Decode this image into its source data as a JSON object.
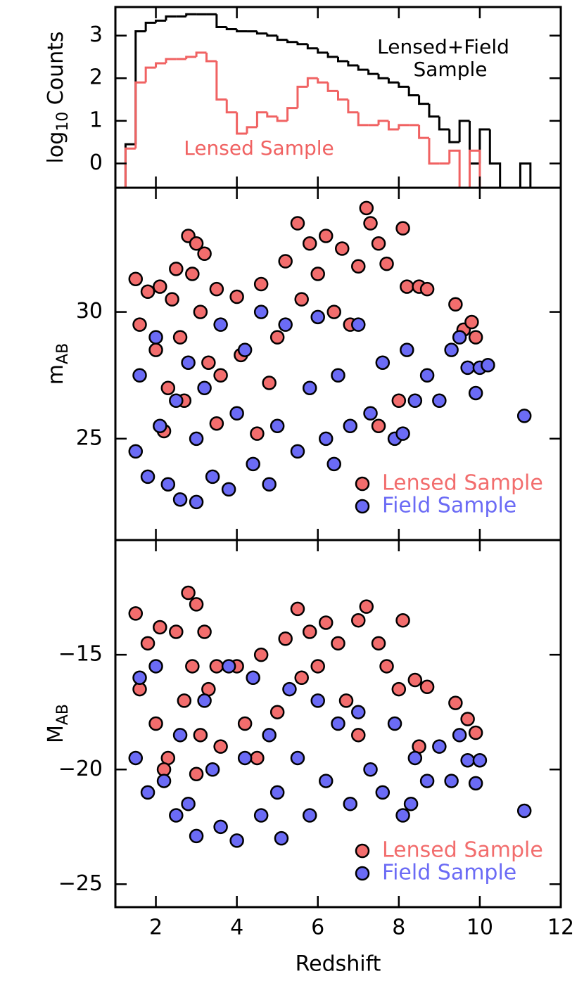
{
  "chart_data": [
    {
      "type": "histogram",
      "ylabel": "log",
      "ylabel_sub": "10",
      "ylabel_suffix": "Counts",
      "xlim": [
        1,
        12
      ],
      "xticks": [
        2,
        4,
        6,
        8,
        10,
        12
      ],
      "show_xtick_labels": false,
      "ylim": [
        -0.57,
        3.67
      ],
      "yticks": [
        0,
        1,
        2,
        3
      ],
      "bins": [
        1.25,
        1.5,
        1.75,
        2.0,
        2.25,
        2.5,
        2.75,
        3.0,
        3.25,
        3.5,
        3.75,
        4.0,
        4.25,
        4.5,
        4.75,
        5.0,
        5.25,
        5.5,
        5.75,
        6.0,
        6.25,
        6.5,
        6.75,
        7.0,
        7.25,
        7.5,
        7.75,
        8.0,
        8.25,
        8.5,
        8.75,
        9.0,
        9.25,
        9.5,
        9.75,
        10.0,
        10.25,
        10.5,
        10.75,
        11.0,
        11.25
      ],
      "series": [
        {
          "color": "#000000",
          "values": [
            0.45,
            3.1,
            3.3,
            3.35,
            3.45,
            3.45,
            3.5,
            3.5,
            3.5,
            3.2,
            3.15,
            3.1,
            3.1,
            3.05,
            3.0,
            2.9,
            2.85,
            2.8,
            2.7,
            2.6,
            2.5,
            2.4,
            2.3,
            2.2,
            2.1,
            2.0,
            1.9,
            1.8,
            1.6,
            1.4,
            1.1,
            0.8,
            0.5,
            1.0,
            0.0,
            0.8,
            0.0,
            null,
            null,
            0.0
          ]
        },
        {
          "color": "#f06262",
          "values": [
            0.35,
            1.9,
            2.25,
            2.35,
            2.45,
            2.45,
            2.5,
            2.6,
            2.4,
            1.5,
            1.2,
            0.7,
            0.85,
            1.2,
            1.1,
            1.0,
            1.3,
            1.8,
            2.0,
            1.9,
            1.7,
            1.5,
            1.2,
            0.9,
            0.9,
            1.0,
            0.8,
            0.9,
            0.9,
            0.6,
            0.0,
            0.0,
            0.3,
            null,
            0.3,
            null,
            null,
            null,
            null,
            null
          ]
        }
      ],
      "annotations": [
        {
          "text": [
            "Lensed+Field",
            "Sample"
          ],
          "color": "#000000"
        },
        {
          "text": [
            "Lensed Sample"
          ],
          "color": "#f06262"
        }
      ]
    },
    {
      "type": "scatter",
      "ylabel": "m",
      "ylabel_sub": "AB",
      "xlim": [
        1,
        12
      ],
      "xticks": [
        2,
        4,
        6,
        8,
        10,
        12
      ],
      "show_xtick_labels": false,
      "ylim": [
        21,
        34.9
      ],
      "yticks": [
        25,
        30
      ],
      "legend": "lower right",
      "series": [
        {
          "name": "Lensed Sample",
          "color": "#f26d6d",
          "x": [
            1.5,
            1.6,
            1.8,
            2.0,
            2.1,
            2.3,
            2.4,
            2.5,
            2.6,
            2.7,
            2.8,
            2.9,
            3.0,
            3.1,
            3.2,
            3.3,
            3.5,
            3.6,
            4.0,
            4.1,
            4.6,
            4.8,
            5.0,
            5.2,
            5.5,
            5.6,
            5.8,
            6.0,
            6.2,
            6.4,
            6.6,
            6.8,
            7.0,
            7.2,
            7.3,
            7.5,
            7.7,
            8.1,
            8.2,
            8.5,
            8.7,
            9.4,
            9.6,
            9.8,
            9.9,
            8.0,
            7.5,
            4.5,
            3.5,
            2.2
          ],
          "y": [
            31.3,
            29.5,
            30.8,
            28.5,
            31.0,
            27.0,
            30.5,
            31.7,
            29.0,
            26.5,
            33.0,
            31.5,
            32.7,
            30.0,
            32.3,
            28.0,
            30.9,
            27.5,
            30.6,
            28.3,
            31.1,
            27.2,
            29.0,
            32.0,
            33.5,
            30.5,
            32.7,
            31.5,
            33.0,
            30.0,
            32.5,
            29.5,
            31.8,
            34.1,
            33.5,
            32.7,
            31.9,
            33.3,
            31.0,
            31.0,
            30.9,
            30.3,
            29.3,
            29.6,
            29.0,
            26.5,
            25.5,
            25.2,
            25.6,
            25.3
          ]
        },
        {
          "name": "Field Sample",
          "color": "#6b6bf5",
          "x": [
            1.5,
            1.6,
            1.8,
            2.0,
            2.1,
            2.3,
            2.5,
            2.6,
            2.8,
            3.0,
            3.0,
            3.2,
            3.4,
            3.6,
            3.8,
            4.0,
            4.2,
            4.4,
            4.6,
            4.8,
            5.0,
            5.2,
            5.5,
            5.8,
            6.0,
            6.2,
            6.5,
            6.8,
            7.0,
            7.3,
            7.6,
            7.9,
            8.2,
            8.4,
            8.7,
            9.0,
            9.3,
            9.5,
            9.7,
            9.9,
            10.0,
            10.2,
            11.1,
            8.1,
            6.4
          ],
          "y": [
            24.5,
            27.5,
            23.5,
            29.0,
            25.5,
            23.2,
            26.5,
            22.6,
            28.0,
            22.5,
            25.0,
            27.0,
            23.5,
            29.5,
            23.0,
            26.0,
            28.5,
            24.0,
            30.0,
            23.2,
            25.5,
            29.5,
            24.5,
            27.0,
            29.8,
            25.0,
            27.5,
            25.5,
            29.5,
            26.0,
            28.0,
            25.0,
            28.5,
            26.5,
            27.5,
            26.5,
            28.5,
            29.0,
            27.8,
            26.8,
            27.8,
            27.9,
            25.9,
            25.2,
            24.0
          ]
        }
      ]
    },
    {
      "type": "scatter",
      "ylabel": "M",
      "ylabel_sub": "AB",
      "xlabel": "Redshift",
      "xlim": [
        1,
        12
      ],
      "xticks": [
        2,
        4,
        6,
        8,
        10,
        12
      ],
      "show_xtick_labels": true,
      "ylim": [
        -26,
        -10
      ],
      "yticks": [
        {
          "value": -15,
          "label": "−15"
        },
        {
          "value": -20,
          "label": "−20"
        },
        {
          "value": -25,
          "label": "−25"
        }
      ],
      "legend": "lower right",
      "series": [
        {
          "name": "Lensed Sample",
          "color": "#f26d6d",
          "x": [
            1.5,
            1.6,
            1.8,
            2.0,
            2.1,
            2.3,
            2.5,
            2.7,
            2.8,
            2.9,
            3.0,
            3.1,
            3.2,
            3.3,
            3.5,
            3.6,
            4.0,
            4.2,
            4.6,
            5.0,
            5.2,
            5.5,
            5.6,
            5.8,
            6.0,
            6.2,
            6.5,
            6.7,
            7.0,
            7.2,
            7.5,
            7.7,
            8.0,
            8.1,
            8.4,
            8.7,
            9.4,
            9.7,
            9.9,
            8.5,
            7.0,
            4.5,
            3.0,
            2.2
          ],
          "y": [
            -13.2,
            -16.5,
            -14.5,
            -18.0,
            -13.8,
            -19.5,
            -14.0,
            -17.0,
            -12.3,
            -15.5,
            -12.8,
            -18.5,
            -14.0,
            -16.5,
            -15.5,
            -19.0,
            -15.5,
            -18.0,
            -15.0,
            -17.5,
            -14.3,
            -13.0,
            -16.0,
            -14.0,
            -15.5,
            -13.6,
            -14.5,
            -17.0,
            -13.5,
            -12.9,
            -14.5,
            -15.5,
            -16.5,
            -13.5,
            -16.1,
            -16.4,
            -17.1,
            -17.8,
            -18.4,
            -19.0,
            -18.5,
            -19.5,
            -20.2,
            -20.0
          ]
        },
        {
          "name": "Field Sample",
          "color": "#6b6bf5",
          "x": [
            1.5,
            1.6,
            1.8,
            2.0,
            2.2,
            2.5,
            2.6,
            2.8,
            3.0,
            3.2,
            3.4,
            3.6,
            3.8,
            4.0,
            4.2,
            4.4,
            4.6,
            4.8,
            5.0,
            5.1,
            5.3,
            5.5,
            5.8,
            6.0,
            6.2,
            6.5,
            6.8,
            7.0,
            7.3,
            7.6,
            7.9,
            8.1,
            8.4,
            8.7,
            9.0,
            9.3,
            9.5,
            9.7,
            10.0,
            9.9,
            11.1,
            8.3
          ],
          "y": [
            -19.5,
            -16.0,
            -21.0,
            -15.5,
            -20.5,
            -22.0,
            -18.5,
            -21.5,
            -22.9,
            -17.0,
            -20.0,
            -22.5,
            -15.5,
            -23.1,
            -19.5,
            -16.0,
            -22.0,
            -18.5,
            -21.0,
            -23.0,
            -16.5,
            -19.5,
            -22.0,
            -17.0,
            -20.5,
            -18.0,
            -21.5,
            -17.5,
            -20.0,
            -21.0,
            -18.0,
            -22.0,
            -19.5,
            -20.5,
            -19.0,
            -20.5,
            -18.5,
            -19.6,
            -19.6,
            -20.6,
            -21.8,
            -21.5
          ]
        }
      ]
    }
  ]
}
